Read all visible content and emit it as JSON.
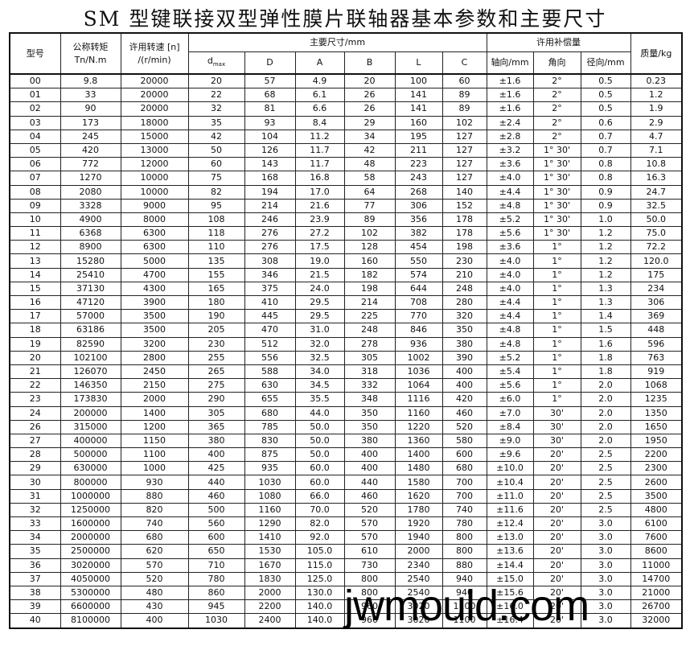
{
  "title": "SM 型键联接双型弹性膜片联轴器基本参数和主要尺寸",
  "headers": {
    "model": "型号",
    "torque_line1": "公称转矩",
    "torque_line2": "Tn/N.m",
    "speed_line1": "许用转速 [n]",
    "speed_line2": "/(r/min)",
    "dims_group": "主要尺寸/mm",
    "dmax": "d",
    "dmax_sub": "max",
    "D": "D",
    "A": "A",
    "B": "B",
    "L": "L",
    "C": "C",
    "comp_group": "许用补偿量",
    "axial": "轴向/mm",
    "angular": "角向",
    "radial": "径向/mm",
    "mass": "质量/kg"
  },
  "rows": [
    [
      "00",
      "9.8",
      "20000",
      "20",
      "57",
      "4.9",
      "20",
      "100",
      "60",
      "±1.6",
      "2°",
      "0.5",
      "0.23"
    ],
    [
      "01",
      "33",
      "20000",
      "22",
      "68",
      "6.1",
      "26",
      "141",
      "89",
      "±1.6",
      "2°",
      "0.5",
      "1.2"
    ],
    [
      "02",
      "90",
      "20000",
      "32",
      "81",
      "6.6",
      "26",
      "141",
      "89",
      "±1.6",
      "2°",
      "0.5",
      "1.9"
    ],
    [
      "03",
      "173",
      "18000",
      "35",
      "93",
      "8.4",
      "29",
      "160",
      "102",
      "±2.4",
      "2°",
      "0.6",
      "2.9"
    ],
    [
      "04",
      "245",
      "15000",
      "42",
      "104",
      "11.2",
      "34",
      "195",
      "127",
      "±2.8",
      "2°",
      "0.7",
      "4.7"
    ],
    [
      "05",
      "420",
      "13000",
      "50",
      "126",
      "11.7",
      "42",
      "211",
      "127",
      "±3.2",
      "1° 30'",
      "0.7",
      "7.1"
    ],
    [
      "06",
      "772",
      "12000",
      "60",
      "143",
      "11.7",
      "48",
      "223",
      "127",
      "±3.6",
      "1° 30'",
      "0.8",
      "10.8"
    ],
    [
      "07",
      "1270",
      "10000",
      "75",
      "168",
      "16.8",
      "58",
      "243",
      "127",
      "±4.0",
      "1° 30'",
      "0.8",
      "16.3"
    ],
    [
      "08",
      "2080",
      "10000",
      "82",
      "194",
      "17.0",
      "64",
      "268",
      "140",
      "±4.4",
      "1° 30'",
      "0.9",
      "24.7"
    ],
    [
      "09",
      "3328",
      "9000",
      "95",
      "214",
      "21.6",
      "77",
      "306",
      "152",
      "±4.8",
      "1° 30'",
      "0.9",
      "32.5"
    ],
    [
      "10",
      "4900",
      "8000",
      "108",
      "246",
      "23.9",
      "89",
      "356",
      "178",
      "±5.2",
      "1° 30'",
      "1.0",
      "50.0"
    ],
    [
      "11",
      "6368",
      "6300",
      "118",
      "276",
      "27.2",
      "102",
      "382",
      "178",
      "±5.6",
      "1° 30'",
      "1.2",
      "75.0"
    ],
    [
      "12",
      "8900",
      "6300",
      "110",
      "276",
      "17.5",
      "128",
      "454",
      "198",
      "±3.6",
      "1°",
      "1.2",
      "72.2"
    ],
    [
      "13",
      "15280",
      "5000",
      "135",
      "308",
      "19.0",
      "160",
      "550",
      "230",
      "±4.0",
      "1°",
      "1.2",
      "120.0"
    ],
    [
      "14",
      "25410",
      "4700",
      "155",
      "346",
      "21.5",
      "182",
      "574",
      "210",
      "±4.0",
      "1°",
      "1.2",
      "175"
    ],
    [
      "15",
      "37130",
      "4300",
      "165",
      "375",
      "24.0",
      "198",
      "644",
      "248",
      "±4.0",
      "1°",
      "1.3",
      "234"
    ],
    [
      "16",
      "47120",
      "3900",
      "180",
      "410",
      "29.5",
      "214",
      "708",
      "280",
      "±4.4",
      "1°",
      "1.3",
      "306"
    ],
    [
      "17",
      "57000",
      "3500",
      "190",
      "445",
      "29.5",
      "225",
      "770",
      "320",
      "±4.4",
      "1°",
      "1.4",
      "369"
    ],
    [
      "18",
      "63186",
      "3500",
      "205",
      "470",
      "31.0",
      "248",
      "846",
      "350",
      "±4.8",
      "1°",
      "1.5",
      "448"
    ],
    [
      "19",
      "82590",
      "3200",
      "230",
      "512",
      "32.0",
      "278",
      "936",
      "380",
      "±4.8",
      "1°",
      "1.6",
      "596"
    ],
    [
      "20",
      "102100",
      "2800",
      "255",
      "556",
      "32.5",
      "305",
      "1002",
      "390",
      "±5.2",
      "1°",
      "1.8",
      "763"
    ],
    [
      "21",
      "126070",
      "2450",
      "265",
      "588",
      "34.0",
      "318",
      "1036",
      "400",
      "±5.4",
      "1°",
      "1.8",
      "919"
    ],
    [
      "22",
      "146350",
      "2150",
      "275",
      "630",
      "34.5",
      "332",
      "1064",
      "400",
      "±5.6",
      "1°",
      "2.0",
      "1068"
    ],
    [
      "23",
      "173830",
      "2000",
      "290",
      "655",
      "35.5",
      "348",
      "1116",
      "420",
      "±6.0",
      "1°",
      "2.0",
      "1235"
    ],
    [
      "24",
      "200000",
      "1400",
      "305",
      "680",
      "44.0",
      "350",
      "1160",
      "460",
      "±7.0",
      "30'",
      "2.0",
      "1350"
    ],
    [
      "26",
      "315000",
      "1200",
      "365",
      "785",
      "50.0",
      "350",
      "1220",
      "520",
      "±8.4",
      "30'",
      "2.0",
      "1650"
    ],
    [
      "27",
      "400000",
      "1150",
      "380",
      "830",
      "50.0",
      "380",
      "1360",
      "580",
      "±9.0",
      "30'",
      "2.0",
      "1950"
    ],
    [
      "28",
      "500000",
      "1100",
      "400",
      "875",
      "50.0",
      "400",
      "1400",
      "600",
      "±9.6",
      "20'",
      "2.5",
      "2200"
    ],
    [
      "29",
      "630000",
      "1000",
      "425",
      "935",
      "60.0",
      "400",
      "1480",
      "680",
      "±10.0",
      "20'",
      "2.5",
      "2300"
    ],
    [
      "30",
      "800000",
      "930",
      "440",
      "1030",
      "60.0",
      "440",
      "1580",
      "700",
      "±10.4",
      "20'",
      "2.5",
      "2600"
    ],
    [
      "31",
      "1000000",
      "880",
      "460",
      "1080",
      "66.0",
      "460",
      "1620",
      "700",
      "±11.0",
      "20'",
      "2.5",
      "3500"
    ],
    [
      "32",
      "1250000",
      "820",
      "500",
      "1160",
      "70.0",
      "520",
      "1780",
      "740",
      "±11.6",
      "20'",
      "2.5",
      "4800"
    ],
    [
      "33",
      "1600000",
      "740",
      "560",
      "1290",
      "82.0",
      "570",
      "1920",
      "780",
      "±12.4",
      "20'",
      "3.0",
      "6100"
    ],
    [
      "34",
      "2000000",
      "680",
      "600",
      "1410",
      "92.0",
      "570",
      "1940",
      "800",
      "±13.0",
      "20'",
      "3.0",
      "7600"
    ],
    [
      "35",
      "2500000",
      "620",
      "650",
      "1530",
      "105.0",
      "610",
      "2000",
      "800",
      "±13.6",
      "20'",
      "3.0",
      "8600"
    ],
    [
      "36",
      "3020000",
      "570",
      "710",
      "1670",
      "115.0",
      "730",
      "2340",
      "880",
      "±14.4",
      "20'",
      "3.0",
      "11000"
    ],
    [
      "37",
      "4050000",
      "520",
      "780",
      "1830",
      "125.0",
      "800",
      "2540",
      "940",
      "±15.0",
      "20'",
      "3.0",
      "14700"
    ],
    [
      "38",
      "5300000",
      "480",
      "860",
      "2000",
      "130.0",
      "800",
      "2540",
      "940",
      "±15.6",
      "20'",
      "3.0",
      "21000"
    ],
    [
      "39",
      "6600000",
      "430",
      "945",
      "2200",
      "140.0",
      "960",
      "3020",
      "1100",
      "±16.0",
      "20'",
      "3.0",
      "26700"
    ],
    [
      "40",
      "8100000",
      "400",
      "1030",
      "2400",
      "140.0",
      "960",
      "3020",
      "1100",
      "±16.4",
      "20'",
      "3.0",
      "32000"
    ]
  ],
  "watermark": "jwmould.com"
}
